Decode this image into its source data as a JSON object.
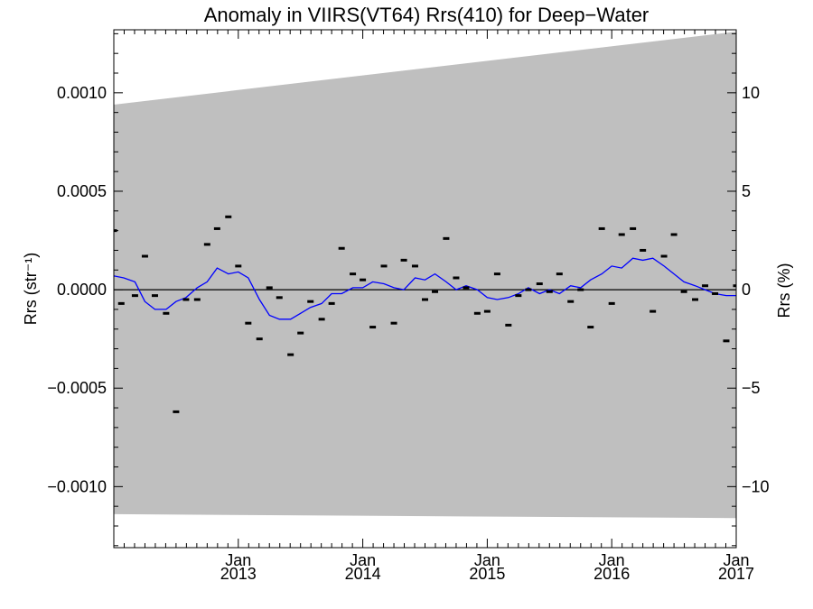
{
  "chart_data": {
    "type": "scatter",
    "title": "Anomaly in VIIRS(VT64) Rrs(410) for Deep−Water",
    "ylabel_left": "Rrs (str⁻¹)",
    "ylabel_right": "Rrs (%)",
    "xlim": [
      2012.0,
      2017.0
    ],
    "ylim": [
      -0.00131,
      0.00132
    ],
    "y2lim": [
      -13.1,
      13.2
    ],
    "x_ticks": [
      {
        "value": 2013.0,
        "month": "Jan",
        "year": "2013"
      },
      {
        "value": 2014.0,
        "month": "Jan",
        "year": "2014"
      },
      {
        "value": 2015.0,
        "month": "Jan",
        "year": "2015"
      },
      {
        "value": 2016.0,
        "month": "Jan",
        "year": "2016"
      },
      {
        "value": 2017.0,
        "month": "Jan",
        "year": "2017"
      }
    ],
    "y_ticks_left": [
      {
        "value": 0.001,
        "label": "0.0010"
      },
      {
        "value": 0.0005,
        "label": "0.0005"
      },
      {
        "value": 0.0,
        "label": "0.0000"
      },
      {
        "value": -0.0005,
        "label": "−0.0005"
      },
      {
        "value": -0.001,
        "label": "−0.0010"
      }
    ],
    "y_ticks_right": [
      {
        "value": 10,
        "label": "10"
      },
      {
        "value": 5,
        "label": "5"
      },
      {
        "value": 0,
        "label": "0"
      },
      {
        "value": -5,
        "label": "−5"
      },
      {
        "value": -10,
        "label": "−10"
      }
    ],
    "band": {
      "color": "#bfbfbf",
      "upper": [
        [
          2012.0,
          0.00094
        ],
        [
          2017.0,
          0.00131
        ]
      ],
      "lower": [
        [
          2012.0,
          -0.00114
        ],
        [
          2017.0,
          -0.00116
        ]
      ]
    },
    "zero_line": {
      "value": 0.0,
      "color": "#000000"
    },
    "series": [
      {
        "type": "scatter",
        "marker": "dash",
        "color": "#000000",
        "x": [
          2012.0,
          2012.06,
          2012.17,
          2012.25,
          2012.33,
          2012.42,
          2012.5,
          2012.58,
          2012.67,
          2012.75,
          2012.83,
          2012.92,
          2013.0,
          2013.08,
          2013.17,
          2013.25,
          2013.33,
          2013.42,
          2013.5,
          2013.58,
          2013.67,
          2013.75,
          2013.83,
          2013.92,
          2014.0,
          2014.08,
          2014.17,
          2014.25,
          2014.33,
          2014.42,
          2014.5,
          2014.58,
          2014.67,
          2014.75,
          2014.83,
          2014.92,
          2015.0,
          2015.08,
          2015.17,
          2015.25,
          2015.33,
          2015.42,
          2015.5,
          2015.58,
          2015.67,
          2015.75,
          2015.83,
          2015.92,
          2016.0,
          2016.08,
          2016.17,
          2016.25,
          2016.33,
          2016.42,
          2016.5,
          2016.58,
          2016.67,
          2016.75,
          2016.83,
          2016.92,
          2017.0
        ],
        "values": [
          0.0003,
          -7e-05,
          -3e-05,
          0.00017,
          -3e-05,
          -0.00012,
          -0.00062,
          -5e-05,
          -5e-05,
          0.00023,
          0.00031,
          0.00037,
          0.00012,
          -0.00017,
          -0.00025,
          1e-05,
          -4e-05,
          -0.00033,
          -0.00022,
          -6e-05,
          -0.00015,
          -7e-05,
          0.00021,
          8e-05,
          5e-05,
          -0.00019,
          0.00012,
          -0.00017,
          0.00015,
          0.00012,
          -5e-05,
          -1e-05,
          0.00026,
          6e-05,
          1e-05,
          -0.00012,
          -0.00011,
          8e-05,
          -0.00018,
          -3e-05,
          0.0,
          3e-05,
          -1e-05,
          8e-05,
          -6e-05,
          0.0,
          -0.00019,
          0.00031,
          -7e-05,
          0.00028,
          0.00031,
          0.0002,
          -0.00011,
          0.00017,
          0.00028,
          -1e-05,
          -5e-05,
          2e-05,
          -2e-05,
          -0.00026,
          2e-05
        ]
      },
      {
        "type": "line",
        "color": "#0000ff",
        "x": [
          2012.0,
          2012.08,
          2012.17,
          2012.25,
          2012.33,
          2012.42,
          2012.5,
          2012.58,
          2012.67,
          2012.75,
          2012.83,
          2012.92,
          2013.0,
          2013.08,
          2013.17,
          2013.25,
          2013.33,
          2013.42,
          2013.5,
          2013.58,
          2013.67,
          2013.75,
          2013.83,
          2013.92,
          2014.0,
          2014.08,
          2014.17,
          2014.25,
          2014.33,
          2014.42,
          2014.5,
          2014.58,
          2014.67,
          2014.75,
          2014.83,
          2014.92,
          2015.0,
          2015.08,
          2015.17,
          2015.25,
          2015.33,
          2015.42,
          2015.5,
          2015.58,
          2015.67,
          2015.75,
          2015.83,
          2015.92,
          2016.0,
          2016.08,
          2016.17,
          2016.25,
          2016.33,
          2016.42,
          2016.5,
          2016.58,
          2016.67,
          2016.75,
          2016.83,
          2016.92,
          2017.0
        ],
        "values": [
          7e-05,
          6e-05,
          4e-05,
          -6e-05,
          -0.0001,
          -0.0001,
          -6e-05,
          -4e-05,
          1e-05,
          4e-05,
          0.00011,
          8e-05,
          9e-05,
          6e-05,
          -5e-05,
          -0.00013,
          -0.00015,
          -0.00015,
          -0.00012,
          -9e-05,
          -7e-05,
          -2e-05,
          -2e-05,
          1e-05,
          1e-05,
          4e-05,
          3e-05,
          1e-05,
          0.0,
          6e-05,
          5e-05,
          8e-05,
          4e-05,
          0.0,
          2e-05,
          0.0,
          -4e-05,
          -5e-05,
          -4e-05,
          -2e-05,
          1e-05,
          -2e-05,
          0.0,
          -2e-05,
          2e-05,
          1e-05,
          5e-05,
          8e-05,
          0.00012,
          0.00011,
          0.00016,
          0.00015,
          0.00016,
          0.00012,
          8e-05,
          4e-05,
          2e-05,
          0.0,
          -2e-05,
          -3e-05,
          -3e-05
        ]
      }
    ],
    "grid": false,
    "legend": "none"
  }
}
